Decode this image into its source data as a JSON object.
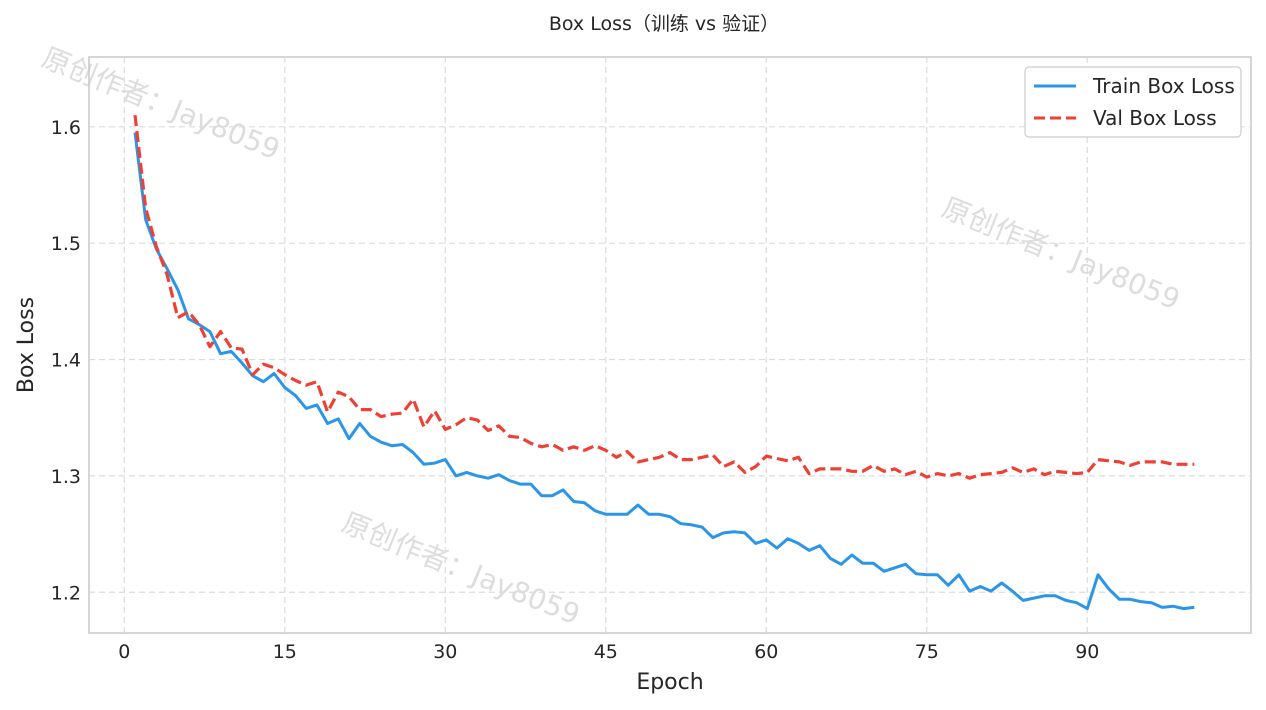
{
  "chart_data": {
    "type": "line",
    "title": "Box Loss（训练 vs 验证）",
    "xlabel": "Epoch",
    "ylabel": "Box Loss",
    "xlim": [
      -3.3,
      105.3
    ],
    "ylim": [
      1.165,
      1.66
    ],
    "xticks": [
      0,
      15,
      30,
      45,
      60,
      75,
      90
    ],
    "yticks": [
      1.2,
      1.3,
      1.4,
      1.5,
      1.6
    ],
    "grid": true,
    "legend_position": "top-right",
    "watermark": "原创作者：Jay8059",
    "x": [
      1,
      2,
      3,
      4,
      5,
      6,
      7,
      8,
      9,
      10,
      11,
      12,
      13,
      14,
      15,
      16,
      17,
      18,
      19,
      20,
      21,
      22,
      23,
      24,
      25,
      26,
      27,
      28,
      29,
      30,
      31,
      32,
      33,
      34,
      35,
      36,
      37,
      38,
      39,
      40,
      41,
      42,
      43,
      44,
      45,
      46,
      47,
      48,
      49,
      50,
      51,
      52,
      53,
      54,
      55,
      56,
      57,
      58,
      59,
      60,
      61,
      62,
      63,
      64,
      65,
      66,
      67,
      68,
      69,
      70,
      71,
      72,
      73,
      74,
      75,
      76,
      77,
      78,
      79,
      80,
      81,
      82,
      83,
      84,
      85,
      86,
      87,
      88,
      89,
      90,
      91,
      92,
      93,
      94,
      95,
      96,
      97,
      98,
      99,
      100
    ],
    "series": [
      {
        "name": "Train Box Loss",
        "color": "#2b95e8",
        "style": "solid",
        "values": [
          1.595,
          1.52,
          1.495,
          1.478,
          1.46,
          1.435,
          1.43,
          1.424,
          1.405,
          1.407,
          1.397,
          1.386,
          1.381,
          1.388,
          1.376,
          1.369,
          1.358,
          1.361,
          1.345,
          1.349,
          1.332,
          1.345,
          1.334,
          1.329,
          1.326,
          1.327,
          1.32,
          1.31,
          1.311,
          1.314,
          1.3,
          1.303,
          1.3,
          1.298,
          1.301,
          1.296,
          1.293,
          1.293,
          1.283,
          1.283,
          1.288,
          1.278,
          1.277,
          1.27,
          1.267,
          1.267,
          1.267,
          1.275,
          1.267,
          1.267,
          1.265,
          1.259,
          1.258,
          1.256,
          1.247,
          1.251,
          1.252,
          1.251,
          1.242,
          1.245,
          1.238,
          1.246,
          1.242,
          1.236,
          1.24,
          1.229,
          1.224,
          1.232,
          1.225,
          1.225,
          1.218,
          1.221,
          1.224,
          1.216,
          1.215,
          1.215,
          1.206,
          1.215,
          1.201,
          1.205,
          1.201,
          1.208,
          1.201,
          1.193,
          1.195,
          1.197,
          1.197,
          1.193,
          1.191,
          1.186,
          1.215,
          1.203,
          1.194,
          1.194,
          1.192,
          1.191,
          1.187,
          1.188,
          1.186,
          1.187
        ]
      },
      {
        "name": "Val Box Loss",
        "color": "#ee4136",
        "style": "dashed",
        "values": [
          1.61,
          1.53,
          1.497,
          1.473,
          1.436,
          1.441,
          1.43,
          1.411,
          1.424,
          1.41,
          1.409,
          1.387,
          1.396,
          1.393,
          1.387,
          1.382,
          1.378,
          1.381,
          1.355,
          1.372,
          1.368,
          1.357,
          1.357,
          1.351,
          1.353,
          1.354,
          1.366,
          1.342,
          1.356,
          1.34,
          1.344,
          1.35,
          1.348,
          1.339,
          1.343,
          1.334,
          1.333,
          1.328,
          1.325,
          1.327,
          1.322,
          1.325,
          1.322,
          1.326,
          1.322,
          1.316,
          1.321,
          1.312,
          1.314,
          1.316,
          1.32,
          1.314,
          1.314,
          1.316,
          1.318,
          1.308,
          1.312,
          1.303,
          1.308,
          1.317,
          1.315,
          1.313,
          1.316,
          1.302,
          1.306,
          1.306,
          1.306,
          1.304,
          1.304,
          1.309,
          1.304,
          1.306,
          1.301,
          1.304,
          1.299,
          1.302,
          1.3,
          1.302,
          1.298,
          1.301,
          1.302,
          1.303,
          1.307,
          1.303,
          1.306,
          1.301,
          1.304,
          1.303,
          1.302,
          1.303,
          1.314,
          1.313,
          1.312,
          1.309,
          1.312,
          1.312,
          1.312,
          1.31,
          1.31,
          1.31
        ]
      }
    ]
  }
}
